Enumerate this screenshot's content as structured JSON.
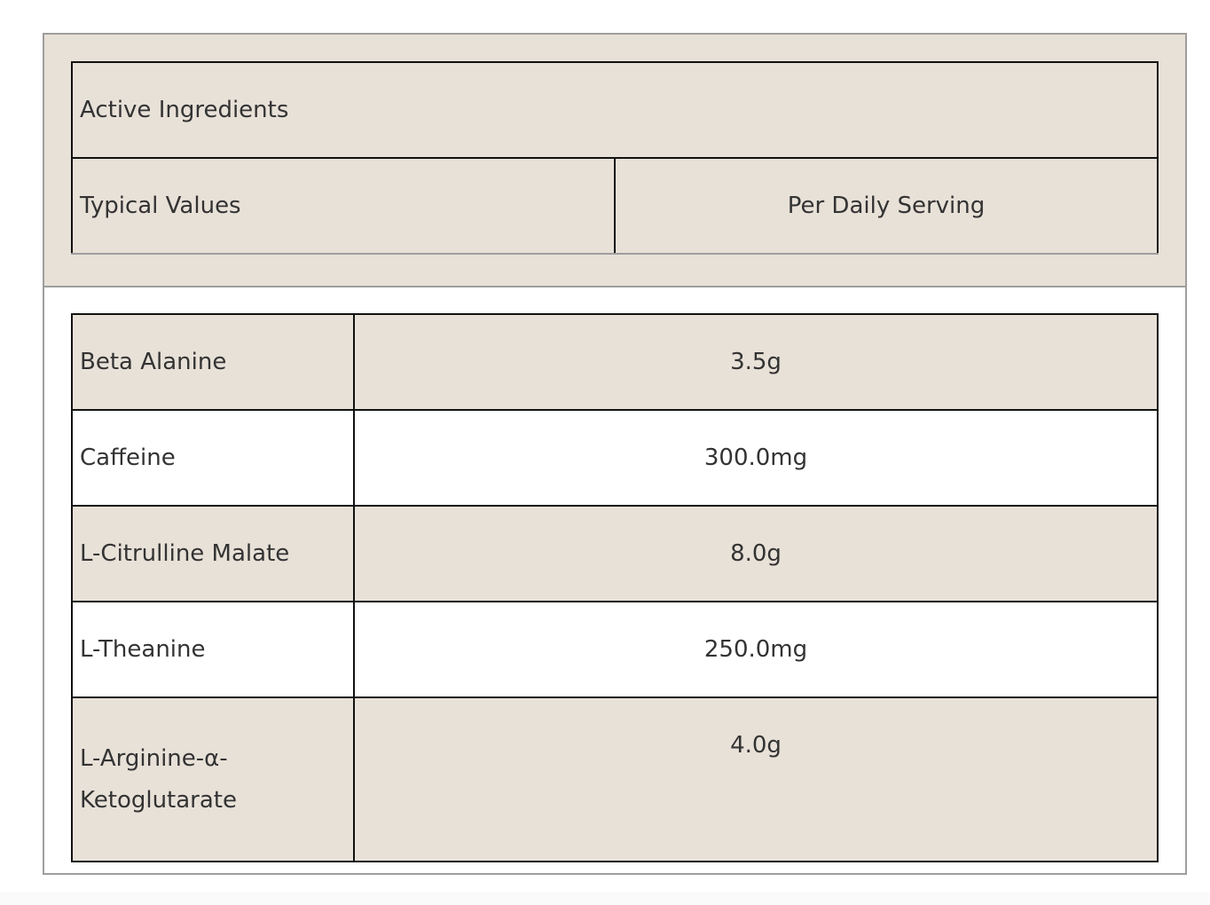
{
  "header": {
    "title": "Active Ingredients",
    "col1": "Typical Values",
    "col2": "Per Daily Serving"
  },
  "colors": {
    "beige": "#e8e1d8",
    "border": "#111111",
    "outer_border": "#9e9e9e",
    "text": "#333333"
  },
  "rows": [
    {
      "name": "Beta Alanine",
      "value": "3.5g"
    },
    {
      "name": "Caffeine",
      "value": "300.0mg"
    },
    {
      "name": "L-Citrulline Malate",
      "value": "8.0g"
    },
    {
      "name": "L-Theanine",
      "value": "250.0mg"
    },
    {
      "name": "L-Arginine-α-Ketoglutarate",
      "value": "4.0g"
    }
  ]
}
